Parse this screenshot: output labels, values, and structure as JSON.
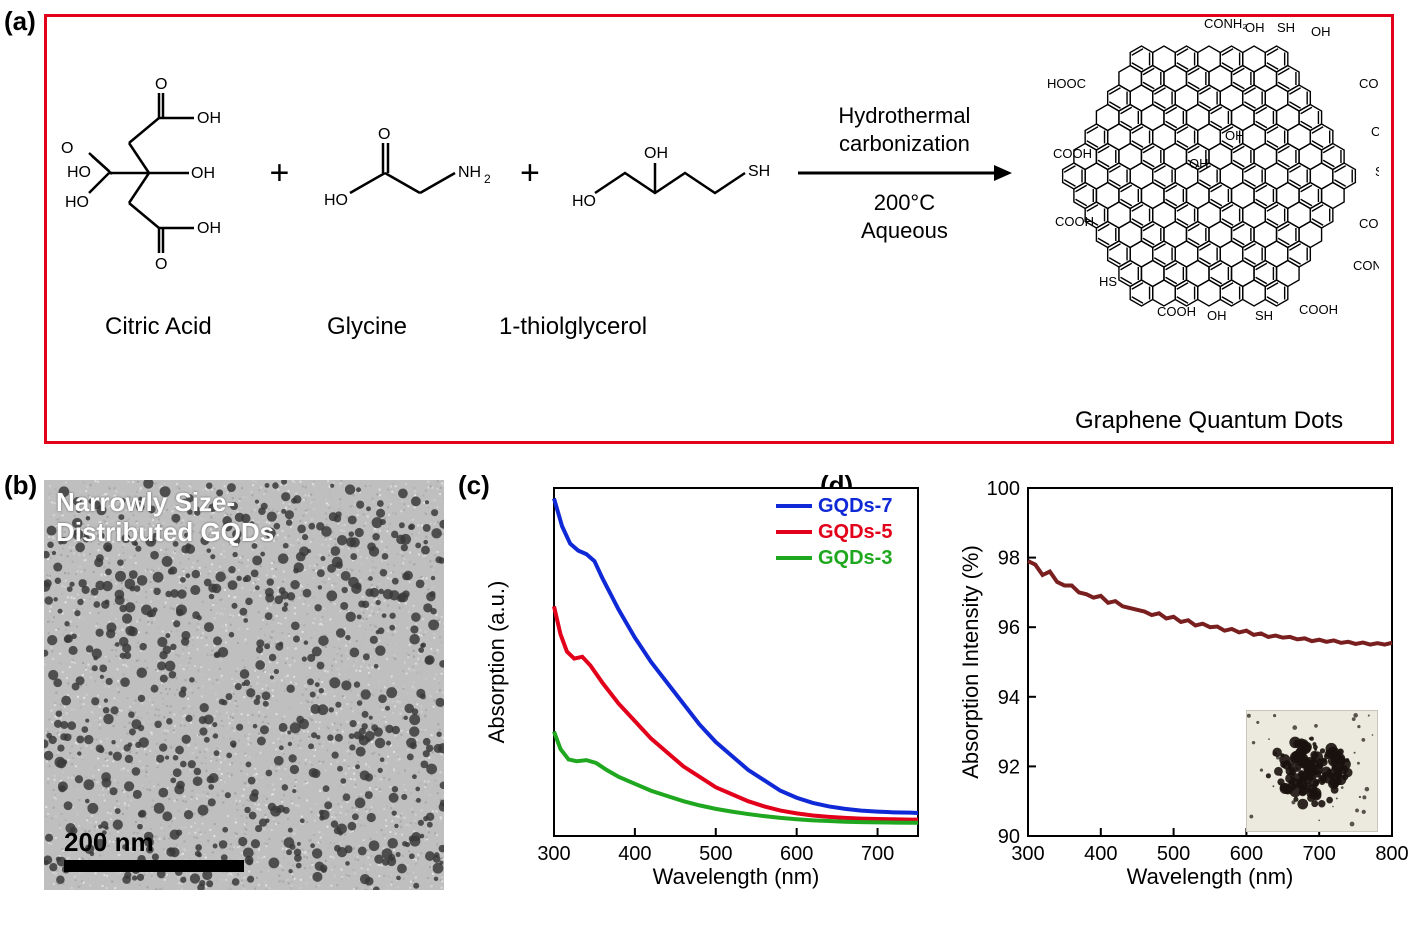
{
  "labels": {
    "a": "(a)",
    "b": "(b)",
    "c": "(c)",
    "d": "(d)"
  },
  "panel_a": {
    "border_color": "#e2001a",
    "reactants": [
      {
        "name": "Citric Acid"
      },
      {
        "name": "Glycine"
      },
      {
        "name": "1-thiolglycerol"
      }
    ],
    "arrow": {
      "top1": "Hydrothermal",
      "top2": "carbonization",
      "bottom1": "200°C",
      "bottom2": "Aqueous"
    },
    "product_label": "Graphene Quantum Dots",
    "gqd_substituents": [
      "OH",
      "SH",
      "COOH",
      "CONH₂"
    ]
  },
  "panel_b": {
    "caption_line1": "Narrowly Size-",
    "caption_line2": "Distributed GQDs",
    "scalebar_text": "200 nm",
    "background": "#bfbfbf",
    "dot_color": "#3a3a3a"
  },
  "panel_c": {
    "type": "line",
    "title": "",
    "xlabel": "Wavelength (nm)",
    "ylabel": "Absorption (a.u.)",
    "xlim": [
      300,
      750
    ],
    "xticks": [
      300,
      400,
      500,
      600,
      700
    ],
    "ylim": [
      0,
      100
    ],
    "label_fontsize": 22,
    "tick_fontsize": 20,
    "line_width": 4,
    "background": "#ffffff",
    "legend": [
      {
        "name": "GQDs-7",
        "color": "#1029d6"
      },
      {
        "name": "GQDs-5",
        "color": "#e2001a"
      },
      {
        "name": "GQDs-3",
        "color": "#1fa81f"
      }
    ],
    "series": {
      "GQDs-7": {
        "color": "#1029d6",
        "points": [
          [
            300,
            97
          ],
          [
            310,
            89
          ],
          [
            320,
            84
          ],
          [
            330,
            82
          ],
          [
            340,
            81
          ],
          [
            350,
            79
          ],
          [
            360,
            74
          ],
          [
            380,
            65
          ],
          [
            400,
            57
          ],
          [
            420,
            50
          ],
          [
            440,
            44
          ],
          [
            460,
            38
          ],
          [
            480,
            32
          ],
          [
            500,
            27
          ],
          [
            520,
            23
          ],
          [
            540,
            19
          ],
          [
            560,
            16
          ],
          [
            580,
            13
          ],
          [
            600,
            11
          ],
          [
            620,
            9.5
          ],
          [
            640,
            8.5
          ],
          [
            660,
            7.8
          ],
          [
            680,
            7.3
          ],
          [
            700,
            7.0
          ],
          [
            720,
            6.8
          ],
          [
            740,
            6.7
          ],
          [
            750,
            6.6
          ]
        ]
      },
      "GQDs-5": {
        "color": "#e2001a",
        "points": [
          [
            300,
            66
          ],
          [
            308,
            58
          ],
          [
            316,
            53
          ],
          [
            325,
            51
          ],
          [
            335,
            51.5
          ],
          [
            345,
            49
          ],
          [
            360,
            44
          ],
          [
            380,
            38
          ],
          [
            400,
            33
          ],
          [
            420,
            28
          ],
          [
            440,
            24
          ],
          [
            460,
            20
          ],
          [
            480,
            17
          ],
          [
            500,
            14
          ],
          [
            520,
            12
          ],
          [
            540,
            10
          ],
          [
            560,
            8.5
          ],
          [
            580,
            7.3
          ],
          [
            600,
            6.5
          ],
          [
            620,
            5.9
          ],
          [
            640,
            5.5
          ],
          [
            660,
            5.2
          ],
          [
            680,
            5.0
          ],
          [
            700,
            4.9
          ],
          [
            720,
            4.8
          ],
          [
            740,
            4.7
          ],
          [
            750,
            4.7
          ]
        ]
      },
      "GQDs-3": {
        "color": "#1fa81f",
        "points": [
          [
            300,
            30
          ],
          [
            308,
            25
          ],
          [
            318,
            22
          ],
          [
            328,
            21.5
          ],
          [
            340,
            21.8
          ],
          [
            352,
            21
          ],
          [
            365,
            19
          ],
          [
            380,
            17
          ],
          [
            400,
            15
          ],
          [
            420,
            13
          ],
          [
            440,
            11.5
          ],
          [
            460,
            10
          ],
          [
            480,
            8.8
          ],
          [
            500,
            7.8
          ],
          [
            520,
            7.0
          ],
          [
            540,
            6.3
          ],
          [
            560,
            5.7
          ],
          [
            580,
            5.2
          ],
          [
            600,
            4.8
          ],
          [
            620,
            4.5
          ],
          [
            640,
            4.3
          ],
          [
            660,
            4.1
          ],
          [
            680,
            4.0
          ],
          [
            700,
            3.9
          ],
          [
            720,
            3.85
          ],
          [
            740,
            3.8
          ],
          [
            750,
            3.8
          ]
        ]
      }
    }
  },
  "panel_d": {
    "type": "line",
    "xlabel": "Wavelength (nm)",
    "ylabel": "Absorption Intensity (%)",
    "xlim": [
      300,
      800
    ],
    "xticks": [
      300,
      400,
      500,
      600,
      700,
      800
    ],
    "ylim": [
      90,
      100
    ],
    "yticks": [
      90,
      92,
      94,
      96,
      98,
      100
    ],
    "label_fontsize": 22,
    "tick_fontsize": 20,
    "line_width": 3.5,
    "line_color": "#7a1f1f",
    "background": "#ffffff",
    "points": [
      [
        300,
        97.9
      ],
      [
        310,
        97.8
      ],
      [
        320,
        97.5
      ],
      [
        330,
        97.6
      ],
      [
        340,
        97.3
      ],
      [
        350,
        97.2
      ],
      [
        360,
        97.2
      ],
      [
        370,
        97.0
      ],
      [
        380,
        96.95
      ],
      [
        390,
        96.85
      ],
      [
        400,
        96.9
      ],
      [
        410,
        96.7
      ],
      [
        420,
        96.75
      ],
      [
        430,
        96.6
      ],
      [
        440,
        96.55
      ],
      [
        450,
        96.5
      ],
      [
        460,
        96.45
      ],
      [
        470,
        96.35
      ],
      [
        480,
        96.4
      ],
      [
        490,
        96.25
      ],
      [
        500,
        96.3
      ],
      [
        510,
        96.15
      ],
      [
        520,
        96.2
      ],
      [
        530,
        96.05
      ],
      [
        540,
        96.1
      ],
      [
        550,
        96.0
      ],
      [
        560,
        96.02
      ],
      [
        570,
        95.9
      ],
      [
        580,
        95.95
      ],
      [
        590,
        95.85
      ],
      [
        600,
        95.9
      ],
      [
        610,
        95.78
      ],
      [
        620,
        95.82
      ],
      [
        630,
        95.72
      ],
      [
        640,
        95.76
      ],
      [
        650,
        95.7
      ],
      [
        660,
        95.72
      ],
      [
        670,
        95.65
      ],
      [
        680,
        95.68
      ],
      [
        690,
        95.6
      ],
      [
        700,
        95.64
      ],
      [
        710,
        95.58
      ],
      [
        720,
        95.62
      ],
      [
        730,
        95.55
      ],
      [
        740,
        95.58
      ],
      [
        750,
        95.52
      ],
      [
        760,
        95.56
      ],
      [
        770,
        95.5
      ],
      [
        780,
        95.54
      ],
      [
        790,
        95.5
      ],
      [
        800,
        95.55
      ]
    ],
    "inset_bg": "#eceadf",
    "inset_ink": "#1a120d"
  }
}
